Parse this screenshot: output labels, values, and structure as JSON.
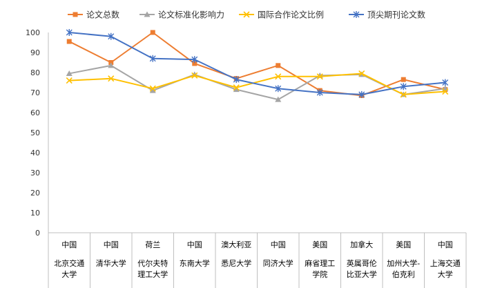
{
  "chart_data": {
    "type": "line",
    "ylim": [
      0,
      100
    ],
    "y_ticks": [
      0,
      10,
      20,
      30,
      40,
      50,
      60,
      70,
      80,
      90,
      100
    ],
    "grid": false,
    "legend_position": "top",
    "categories": [
      {
        "country": "中国",
        "name_lines": [
          "北京交通",
          "大学"
        ]
      },
      {
        "country": "中国",
        "name_lines": [
          "清华大学"
        ]
      },
      {
        "country": "荷兰",
        "name_lines": [
          "代尔夫特",
          "理工大学"
        ]
      },
      {
        "country": "中国",
        "name_lines": [
          "东南大学"
        ]
      },
      {
        "country": "澳大利亚",
        "name_lines": [
          "悉尼大学"
        ]
      },
      {
        "country": "中国",
        "name_lines": [
          "同济大学"
        ]
      },
      {
        "country": "美国",
        "name_lines": [
          "麻省理工",
          "学院"
        ]
      },
      {
        "country": "加拿大",
        "name_lines": [
          "英属哥伦",
          "比亚大学"
        ]
      },
      {
        "country": "美国",
        "name_lines": [
          "加州大学-",
          "伯克利"
        ]
      },
      {
        "country": "中国",
        "name_lines": [
          "上海交通",
          "大学"
        ]
      }
    ],
    "series": [
      {
        "name": "论文总数",
        "color": "#ED7D31",
        "marker": "square",
        "values": [
          95.5,
          85,
          100,
          84.5,
          77,
          83.5,
          71,
          68.5,
          76.5,
          71.5
        ]
      },
      {
        "name": "论文标准化影响力",
        "color": "#A5A5A5",
        "marker": "triangle",
        "values": [
          79.5,
          83.5,
          71,
          79,
          71.5,
          66.5,
          78.5,
          79,
          69,
          72
        ]
      },
      {
        "name": "国际合作论文比例",
        "color": "#FFC000",
        "marker": "x",
        "values": [
          76,
          77,
          72,
          78.5,
          72.5,
          78,
          78,
          79.5,
          69,
          70.5
        ]
      },
      {
        "name": "顶尖期刊论文数",
        "color": "#4472C4",
        "marker": "star",
        "values": [
          100,
          98,
          87,
          86.5,
          76.5,
          72,
          70,
          69,
          73,
          75
        ]
      }
    ]
  }
}
